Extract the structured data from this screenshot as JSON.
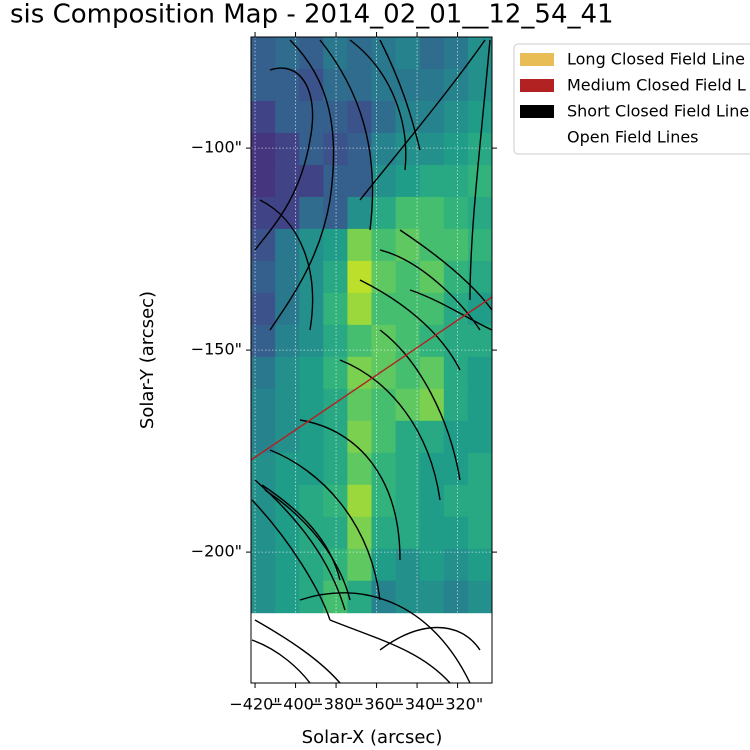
{
  "chart_data": {
    "type": "heatmap",
    "title": "sis Composition Map - 2014_02_01__12_54_41",
    "xlabel": "Solar-X (arcsec)",
    "ylabel": "Solar-Y (arcsec)",
    "xlim": [
      -422,
      -303
    ],
    "ylim": [
      -232.4,
      -72.5
    ],
    "xticks": [
      {
        "value": -420,
        "label": "−420\""
      },
      {
        "value": -400,
        "label": "−400\""
      },
      {
        "value": -380,
        "label": "−380\""
      },
      {
        "value": -360,
        "label": "−360\""
      },
      {
        "value": -340,
        "label": "−340\""
      },
      {
        "value": -320,
        "label": "−320\""
      }
    ],
    "yticks": [
      {
        "value": -100,
        "label": "−100\""
      },
      {
        "value": -150,
        "label": "−150\""
      },
      {
        "value": -200,
        "label": "−200\""
      }
    ],
    "grid": true,
    "colormap": "viridis",
    "image": {
      "extent": [
        -422,
        -303,
        -215,
        -72.5
      ],
      "values": [
        [
          0.3,
          0.35,
          0.3,
          0.4,
          0.35,
          0.4,
          0.45,
          0.35,
          0.4,
          0.5
        ],
        [
          0.3,
          0.3,
          0.25,
          0.35,
          0.35,
          0.4,
          0.4,
          0.4,
          0.45,
          0.5
        ],
        [
          0.2,
          0.3,
          0.3,
          0.3,
          0.25,
          0.35,
          0.45,
          0.45,
          0.5,
          0.55
        ],
        [
          0.15,
          0.2,
          0.3,
          0.25,
          0.3,
          0.45,
          0.5,
          0.5,
          0.55,
          0.6
        ],
        [
          0.15,
          0.2,
          0.2,
          0.3,
          0.3,
          0.5,
          0.55,
          0.6,
          0.6,
          0.65
        ],
        [
          0.2,
          0.2,
          0.35,
          0.3,
          0.5,
          0.6,
          0.7,
          0.7,
          0.65,
          0.6
        ],
        [
          0.25,
          0.4,
          0.5,
          0.55,
          0.8,
          0.7,
          0.75,
          0.7,
          0.7,
          0.65
        ],
        [
          0.3,
          0.4,
          0.5,
          0.6,
          0.9,
          0.75,
          0.7,
          0.75,
          0.65,
          0.6
        ],
        [
          0.25,
          0.4,
          0.5,
          0.65,
          0.85,
          0.7,
          0.7,
          0.7,
          0.6,
          0.55
        ],
        [
          0.3,
          0.45,
          0.5,
          0.6,
          0.7,
          0.75,
          0.7,
          0.65,
          0.6,
          0.6
        ],
        [
          0.4,
          0.5,
          0.55,
          0.65,
          0.8,
          0.75,
          0.7,
          0.75,
          0.6,
          0.55
        ],
        [
          0.45,
          0.5,
          0.55,
          0.6,
          0.75,
          0.7,
          0.75,
          0.8,
          0.6,
          0.55
        ],
        [
          0.45,
          0.5,
          0.55,
          0.6,
          0.8,
          0.7,
          0.6,
          0.6,
          0.55,
          0.55
        ],
        [
          0.5,
          0.55,
          0.55,
          0.6,
          0.75,
          0.65,
          0.6,
          0.55,
          0.55,
          0.6
        ],
        [
          0.5,
          0.55,
          0.6,
          0.65,
          0.85,
          0.65,
          0.6,
          0.55,
          0.6,
          0.6
        ],
        [
          0.5,
          0.55,
          0.6,
          0.6,
          0.8,
          0.6,
          0.6,
          0.55,
          0.55,
          0.6
        ],
        [
          0.5,
          0.55,
          0.6,
          0.65,
          0.75,
          0.55,
          0.5,
          0.55,
          0.5,
          0.55
        ],
        [
          0.5,
          0.55,
          0.6,
          0.7,
          0.6,
          0.45,
          0.5,
          0.5,
          0.45,
          0.5
        ]
      ]
    },
    "legend_position": "upper right",
    "legend": [
      {
        "name": "Long Closed Field Line",
        "color": "#e8bd55"
      },
      {
        "name": "Medium Closed Field L",
        "color": "#b22222"
      },
      {
        "name": "Short Closed Field Line",
        "color": "#000000"
      },
      {
        "name": "Open Field Lines",
        "color": "none"
      }
    ]
  }
}
